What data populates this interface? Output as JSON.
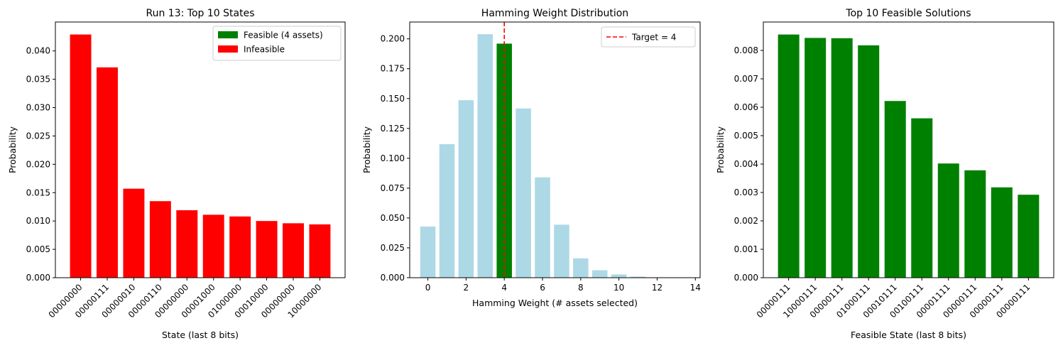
{
  "chart_data": [
    {
      "type": "bar",
      "title": "Run 13: Top 10 States",
      "xlabel": "State (last 8 bits)",
      "ylabel": "Probability",
      "categories": [
        "00000000",
        "00000111",
        "00000010",
        "00000110",
        "00000000",
        "00001000",
        "01000000",
        "00010000",
        "00000000",
        "10000000"
      ],
      "values": [
        0.0429,
        0.0371,
        0.0157,
        0.0135,
        0.0119,
        0.0111,
        0.0108,
        0.01,
        0.0096,
        0.0094
      ],
      "series_status": [
        "Infeasible",
        "Infeasible",
        "Infeasible",
        "Infeasible",
        "Infeasible",
        "Infeasible",
        "Infeasible",
        "Infeasible",
        "Infeasible",
        "Infeasible"
      ],
      "ylim": [
        0,
        0.0451
      ],
      "yticks": [
        0.0,
        0.005,
        0.01,
        0.015,
        0.02,
        0.025,
        0.03,
        0.035,
        0.04
      ],
      "ytick_labels": [
        "0.000",
        "0.005",
        "0.010",
        "0.015",
        "0.020",
        "0.025",
        "0.030",
        "0.035",
        "0.040"
      ],
      "legend": {
        "placement": "top-right",
        "entries": [
          {
            "label": "Feasible (4 assets)",
            "color": "#008000"
          },
          {
            "label": "Infeasible",
            "color": "#ff0000"
          }
        ]
      },
      "colors": {
        "feasible": "#008000",
        "infeasible": "#ff0000"
      }
    },
    {
      "type": "bar",
      "title": "Hamming Weight Distribution",
      "xlabel": "Hamming Weight (# assets selected)",
      "ylabel": "Probability",
      "x": [
        0,
        1,
        2,
        3,
        4,
        5,
        6,
        7,
        8,
        9,
        10,
        11,
        12,
        13
      ],
      "values": [
        0.0428,
        0.1118,
        0.1486,
        0.2039,
        0.196,
        0.1417,
        0.084,
        0.0444,
        0.0162,
        0.0062,
        0.0027,
        0.0009,
        0.0002,
        0.0001
      ],
      "highlight_x": 4,
      "xlim": [
        -0.95,
        14.25
      ],
      "ylim": [
        0,
        0.2141
      ],
      "xticks": [
        0,
        2,
        4,
        6,
        8,
        10,
        12,
        14
      ],
      "xtick_labels": [
        "0",
        "2",
        "4",
        "6",
        "8",
        "10",
        "12",
        "14"
      ],
      "yticks": [
        0.0,
        0.025,
        0.05,
        0.075,
        0.1,
        0.125,
        0.15,
        0.175,
        0.2
      ],
      "ytick_labels": [
        "0.000",
        "0.025",
        "0.050",
        "0.075",
        "0.100",
        "0.125",
        "0.150",
        "0.175",
        "0.200"
      ],
      "target_line": {
        "x": 4,
        "label": "Target = 4",
        "color": "#ff0000"
      },
      "legend": {
        "placement": "top-right"
      },
      "colors": {
        "default": "#add8e6",
        "highlight": "#008000"
      }
    },
    {
      "type": "bar",
      "title": "Top 10 Feasible Solutions",
      "xlabel": "Feasible State (last 8 bits)",
      "ylabel": "Probability",
      "categories": [
        "00000111",
        "10000111",
        "00000111",
        "01000111",
        "00010111",
        "00100111",
        "00001111",
        "00000111",
        "00000111",
        "00000111"
      ],
      "values": [
        0.00856,
        0.00844,
        0.00843,
        0.00818,
        0.00622,
        0.00561,
        0.00402,
        0.00378,
        0.00318,
        0.00292
      ],
      "ylim": [
        0,
        0.009
      ],
      "yticks": [
        0.0,
        0.001,
        0.002,
        0.003,
        0.004,
        0.005,
        0.006,
        0.007,
        0.008
      ],
      "ytick_labels": [
        "0.000",
        "0.001",
        "0.002",
        "0.003",
        "0.004",
        "0.005",
        "0.006",
        "0.007",
        "0.008"
      ],
      "colors": {
        "bar": "#008000"
      }
    }
  ]
}
